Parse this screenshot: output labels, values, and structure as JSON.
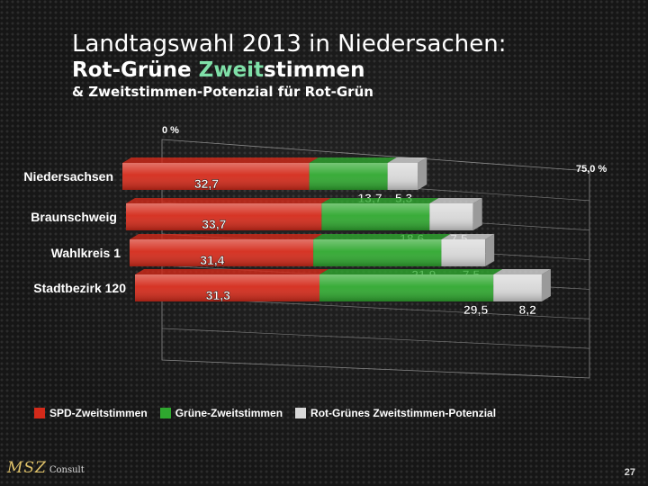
{
  "title": {
    "line1": "Landtagswahl 2013 in Niedersachen:",
    "line2_prefix": "Rot-Grüne ",
    "line2_accent": "Zweit",
    "line2_suffix": "stimmen",
    "line3": "& Zweitstimmen-Potenzial für Rot-Grün"
  },
  "chart_data": {
    "type": "bar",
    "orientation": "horizontal",
    "stacked": true,
    "categories": [
      "Niedersachsen",
      "Braunschweig",
      "Wahlkreis 1",
      "Stadtbezirk 120"
    ],
    "series": [
      {
        "name": "SPD-Zweitstimmen",
        "values": [
          32.7,
          33.7,
          31.4,
          31.3
        ],
        "color": "#d42a1a"
      },
      {
        "name": "Grüne-Zweitstimmen",
        "values": [
          13.7,
          18.6,
          21.9,
          29.5
        ],
        "color": "#2fa82f"
      },
      {
        "name": "Rot-Grünes Zweitstimmen-Potenzial",
        "values": [
          5.3,
          7.5,
          7.5,
          8.2
        ],
        "color": "#d8d8d8"
      }
    ],
    "value_labels": [
      [
        "32,7",
        "13,7",
        "5,3"
      ],
      [
        "33,7",
        "18,6",
        "7,5"
      ],
      [
        "31,4",
        "21,9",
        "7,5"
      ],
      [
        "31,3",
        "29,5",
        "8,2"
      ]
    ],
    "axis_min_label": "0 %",
    "axis_max_label": "75,0 %",
    "xlim": [
      0,
      75
    ],
    "grid": true,
    "legend_position": "bottom-left"
  },
  "footer": {
    "logo_mark": "MSZ",
    "logo_text": "Consult",
    "page_number": "27"
  }
}
